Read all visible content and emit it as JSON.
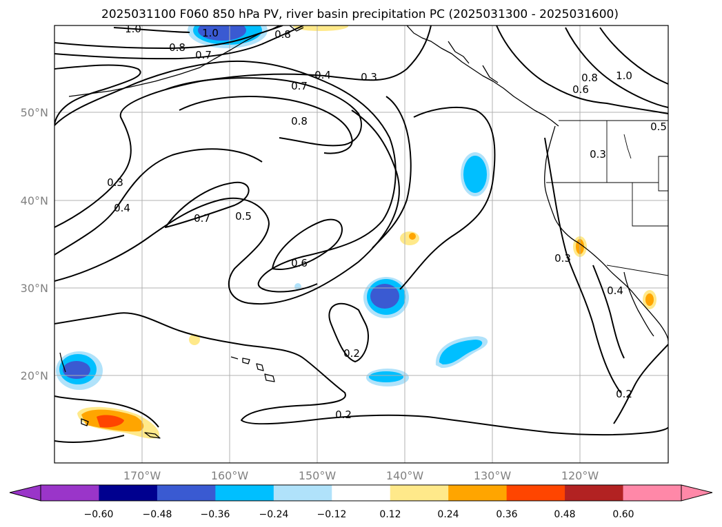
{
  "title": "2025031100 F060 850 hPa PV, river basin precipitation PC (2025031300 - 2025031600)",
  "lat_labels": [
    "50°N",
    "40°N",
    "30°N",
    "20°N"
  ],
  "lon_labels": [
    "170°W",
    "160°W",
    "150°W",
    "140°W",
    "130°W",
    "120°W"
  ],
  "contour_labels": [
    "1.0",
    "1.0",
    "0.8",
    "0.7",
    "0.8",
    "0.4",
    "0.3",
    "0.7",
    "0.8",
    "0.8",
    "0.6",
    "1.0",
    "0.3",
    "0.5",
    "0.3",
    "0.4",
    "0.7",
    "0.5",
    "0.6",
    "0.2",
    "0.2",
    "0.3",
    "0.4",
    "0.2"
  ],
  "colorbar": {
    "ticks": [
      "−0.60",
      "−0.48",
      "−0.36",
      "−0.24",
      "−0.12",
      "0.12",
      "0.24",
      "0.36",
      "0.48",
      "0.60"
    ],
    "colors": [
      "#9a35c9",
      "#00008f",
      "#3a5ad2",
      "#00bfff",
      "#b0e2fa",
      "#ffffff",
      "#ffe98a",
      "#ffa500",
      "#ff4500",
      "#b22222",
      "#ff88a8"
    ]
  },
  "shading_colors": {
    "light_blue": "#b0e2fa",
    "blue": "#00bfff",
    "mid_blue": "#3a5ad2",
    "yellow": "#ffe98a",
    "orange": "#ffa500",
    "red_orange": "#ff4500"
  }
}
